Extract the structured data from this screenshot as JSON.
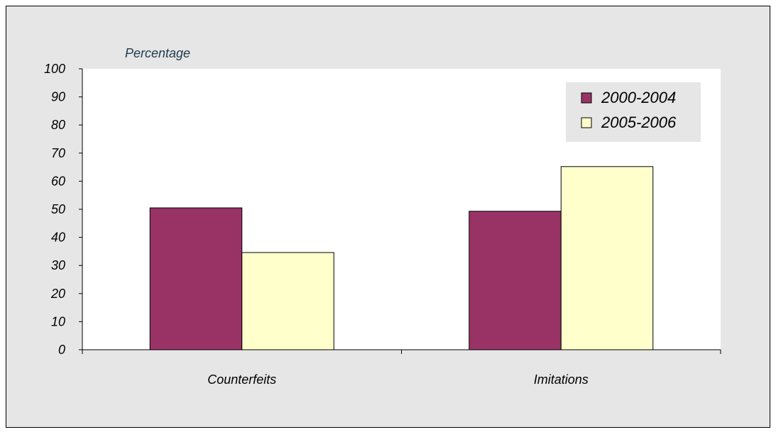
{
  "chart_data": {
    "type": "bar",
    "title": "",
    "ylabel": "Percentage",
    "xlabel": "",
    "categories": [
      "Counterfeits",
      "Imitations"
    ],
    "series": [
      {
        "name": "2000-2004",
        "values": [
          50.5,
          49.3
        ]
      },
      {
        "name": "2005-2006",
        "values": [
          34.6,
          65.2
        ]
      }
    ],
    "ylim": [
      0,
      100
    ],
    "yticks": [
      "0",
      "10",
      "20",
      "30",
      "40",
      "50",
      "60",
      "70",
      "80",
      "90",
      "100"
    ],
    "legend_position": "top-right",
    "grid": false,
    "colors": {
      "panel_background": "#e6e6e6",
      "plot_background": "#ffffff",
      "series": [
        "#993366",
        "#ffffcc"
      ],
      "axis_title": "#1f3a4d",
      "text": "#000000"
    }
  }
}
